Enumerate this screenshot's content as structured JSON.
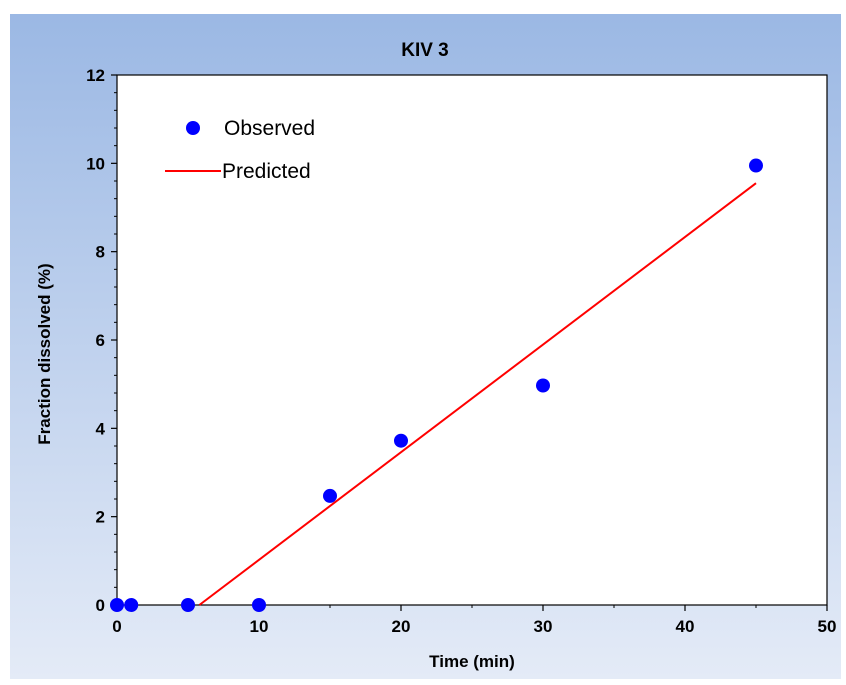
{
  "chart_data": {
    "type": "scatter",
    "title": "KIV 3",
    "xlabel": "Time (min)",
    "ylabel": "Fraction dissolved (%)",
    "xlim": [
      0,
      50
    ],
    "ylim": [
      0,
      12
    ],
    "x_ticks": [
      0,
      10,
      20,
      30,
      40,
      50
    ],
    "y_ticks": [
      0,
      2,
      4,
      6,
      8,
      10,
      12
    ],
    "x_tick_labels": [
      "0",
      "10",
      "20",
      "30",
      "40",
      "50"
    ],
    "y_tick_labels": [
      "0",
      "2",
      "4",
      "6",
      "8",
      "10",
      "12"
    ],
    "grid": false,
    "legend_position": "top-left",
    "series": [
      {
        "name": "Observed",
        "kind": "markers",
        "color": "#0000ff",
        "x": [
          0,
          1,
          5,
          10,
          15,
          20,
          30,
          45
        ],
        "y": [
          0,
          0,
          0,
          0,
          2.47,
          3.72,
          4.97,
          9.95
        ]
      },
      {
        "name": "Predicted",
        "kind": "line",
        "color": "#ff0000",
        "x": [
          5.8,
          45
        ],
        "y": [
          0,
          9.55
        ]
      }
    ],
    "background_gradient": [
      "#9bb8e4",
      "#e4ebf7"
    ]
  }
}
